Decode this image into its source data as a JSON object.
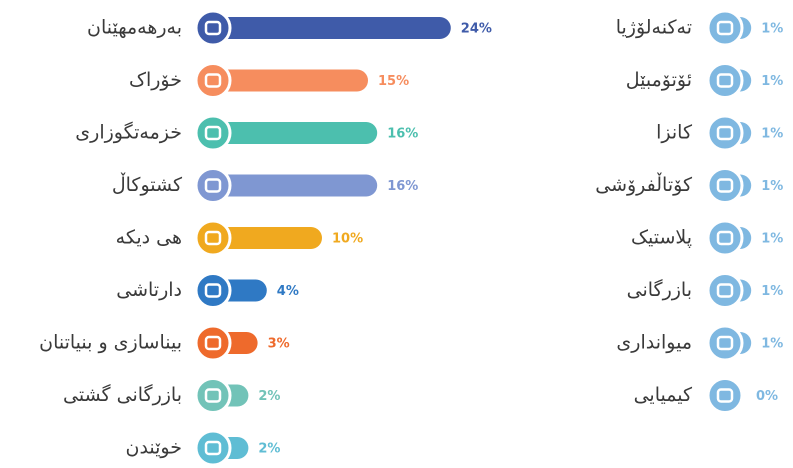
{
  "chart_data": [
    {
      "type": "bar",
      "orientation": "horizontal",
      "categories": [
        "بەرهەمهێنان",
        "خۆراک",
        "خزمەتگوزاری",
        "کشتوکاڵ",
        "هی دیکە",
        "دارتاشی",
        "بیناسازی و بنیاتنان",
        "بازرگانی گشتی",
        "خوێندن"
      ],
      "values": [
        24,
        15,
        16,
        16,
        10,
        4,
        3,
        2,
        2
      ],
      "value_labels": [
        "24%",
        "15%",
        "16%",
        "16%",
        "10%",
        "4%",
        "3%",
        "2%",
        "2%"
      ],
      "colors": [
        "#3f5ba9",
        "#f68d5e",
        "#4cbfae",
        "#7f97d2",
        "#f0a91f",
        "#2f79c4",
        "#ee6a2c",
        "#72c3b8",
        "#5fbdd4"
      ]
    },
    {
      "type": "bar",
      "orientation": "horizontal",
      "categories": [
        "تەکنەلۆژیا",
        "ئۆتۆمبێل",
        "کانزا",
        "کۆتاڵفرۆشی",
        "پلاستیک",
        "بازرگانی",
        "میوانداری",
        "کیمیایی"
      ],
      "values": [
        1,
        1,
        1,
        1,
        1,
        1,
        1,
        0
      ],
      "value_labels": [
        "1%",
        "1%",
        "1%",
        "1%",
        "1%",
        "1%",
        "1%",
        "0%"
      ],
      "colors": [
        "#7fb8e1",
        "#7fb8e1",
        "#7fb8e1",
        "#7fb8e1",
        "#7fb8e1",
        "#7fb8e1",
        "#7fb8e1",
        "#7fb8e1"
      ]
    }
  ]
}
